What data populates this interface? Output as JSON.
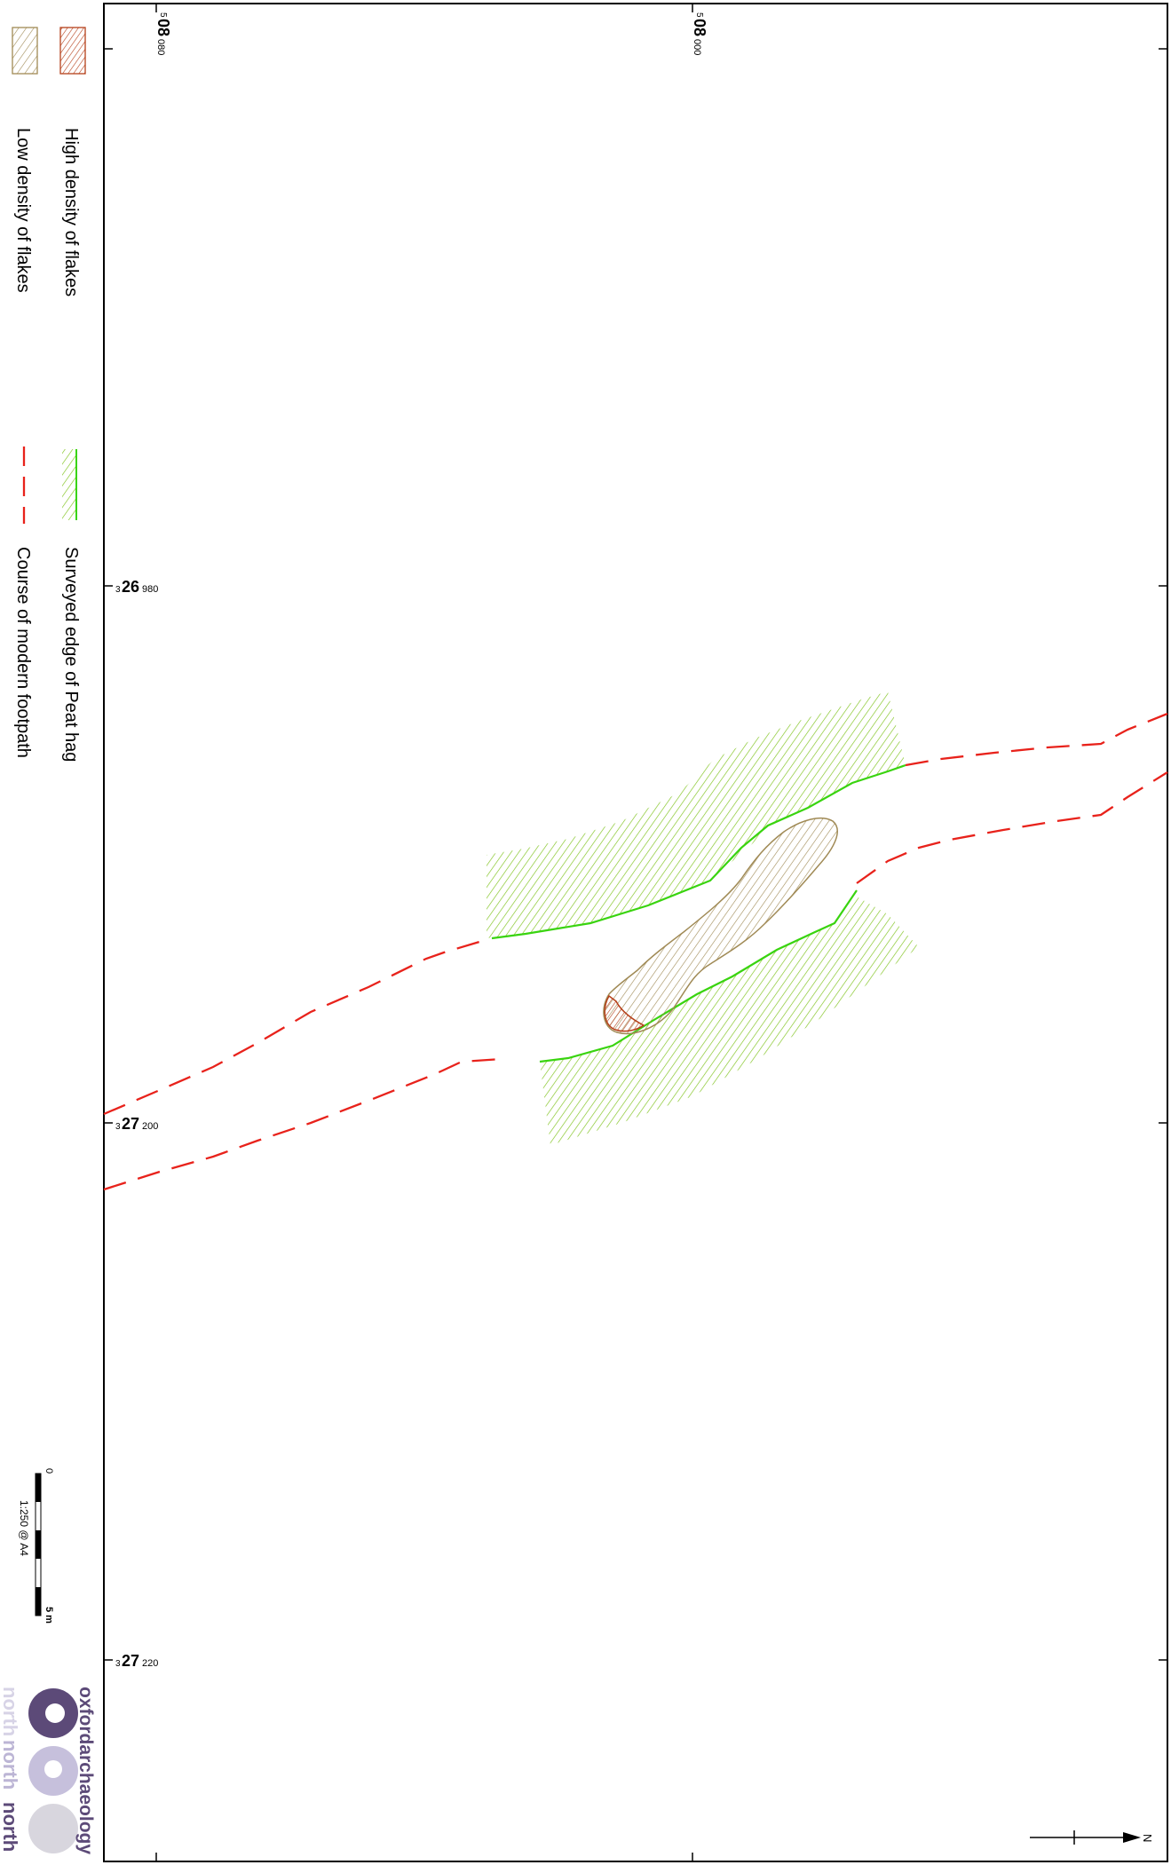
{
  "legend": {
    "items": [
      {
        "label": "High density of flakes",
        "color": "#b5401a",
        "icon": "red-hatch-swatch"
      },
      {
        "label": "Low density of flakes",
        "color": "#a08a55",
        "icon": "tan-hatch-swatch"
      },
      {
        "label": "Surveyed edge of Peat hag",
        "color": "#7fc31c",
        "icon": "green-hatch-edge-swatch"
      },
      {
        "label": "Course of modern footpath",
        "color": "#e8221b",
        "icon": "red-dashed-line-swatch"
      }
    ]
  },
  "grid": {
    "eastings": [
      {
        "prefix": "5",
        "main": "08",
        "sub": "080"
      },
      {
        "prefix": "5",
        "main": "08",
        "sub": "000"
      }
    ],
    "northings": [
      {
        "prefix": "3",
        "main": "26",
        "sub": "980"
      },
      {
        "prefix": "3",
        "main": "27",
        "sub": "200"
      },
      {
        "prefix": "3",
        "main": "27",
        "sub": "220"
      }
    ]
  },
  "scale_bar": {
    "zero_label": "0",
    "end_label": "5 m",
    "ratio_label": "1:250 @ A4"
  },
  "north_arrow": {
    "label": "N"
  },
  "logo": {
    "line1": "oxfordarchaeology",
    "line2": "north",
    "line3": "north",
    "line4": "north"
  },
  "colors": {
    "peat_green": "#7fc31c",
    "peat_edge": "#39d40f",
    "footpath_red": "#e8221b",
    "low_density": "#a08a55",
    "high_density": "#b5401a",
    "logo_purple": "#5c4a78"
  }
}
